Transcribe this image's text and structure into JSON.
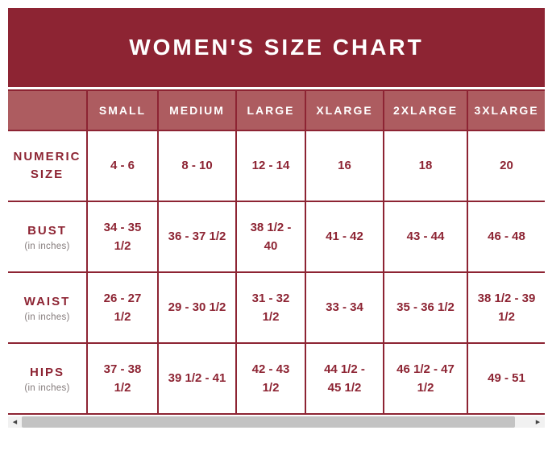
{
  "title": "WOMEN'S SIZE CHART",
  "colors": {
    "title_bar_bg": "#8d2433",
    "header_row_bg": "#ad5c60",
    "border_and_text": "#8d2433",
    "sublabel_text": "#837a7a",
    "scrollbar_track": "#f1f1f1",
    "scrollbar_thumb": "#c3c3c3"
  },
  "table": {
    "columns": [
      "SMALL",
      "MEDIUM",
      "LARGE",
      "XLARGE",
      "2XLARGE",
      "3XLARGE"
    ],
    "rows": [
      {
        "label": "NUMERIC SIZE",
        "values": [
          "4 - 6",
          "8 - 10",
          "12 - 14",
          "16",
          "18",
          "20"
        ]
      },
      {
        "label": "BUST",
        "sublabel": "(in inches)",
        "values": [
          "34 - 35\n1/2",
          "36 - 37 1/2",
          "38 1/2 -\n40",
          "41 - 42",
          "43 - 44",
          "46 - 48"
        ]
      },
      {
        "label": "WAIST",
        "sublabel": "(in inches)",
        "values": [
          "26 - 27\n1/2",
          "29 - 30 1/2",
          "31 - 32\n1/2",
          "33 - 34",
          "35 - 36 1/2",
          "38 1/2 - 39\n1/2"
        ]
      },
      {
        "label": "HIPS",
        "sublabel": "(in inches)",
        "values": [
          "37 - 38\n1/2",
          "39 1/2 - 41",
          "42 - 43\n1/2",
          "44 1/2 -\n45 1/2",
          "46 1/2 - 47\n1/2",
          "49 - 51"
        ]
      }
    ]
  },
  "scrollbar": {
    "left_arrow": "◀",
    "right_arrow": "▶"
  },
  "chart_data": {
    "type": "table",
    "title": "WOMEN'S SIZE CHART",
    "columns": [
      "",
      "SMALL",
      "MEDIUM",
      "LARGE",
      "XLARGE",
      "2XLARGE",
      "3XLARGE"
    ],
    "rows": [
      [
        "NUMERIC SIZE",
        "4 - 6",
        "8 - 10",
        "12 - 14",
        "16",
        "18",
        "20"
      ],
      [
        "BUST (in inches)",
        "34 - 35 1/2",
        "36 - 37 1/2",
        "38 1/2 - 40",
        "41 - 42",
        "43 - 44",
        "46 - 48"
      ],
      [
        "WAIST (in inches)",
        "26 - 27 1/2",
        "29 - 30 1/2",
        "31 - 32 1/2",
        "33 - 34",
        "35 - 36 1/2",
        "38 1/2 - 39 1/2"
      ],
      [
        "HIPS (in inches)",
        "37 - 38 1/2",
        "39 1/2 - 41",
        "42 - 43 1/2",
        "44 1/2 - 45 1/2",
        "46 1/2 - 47 1/2",
        "49 - 51"
      ]
    ]
  }
}
